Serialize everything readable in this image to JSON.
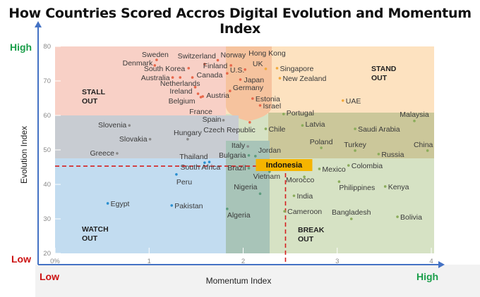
{
  "chart_data": {
    "type": "scatter",
    "title": "How Countries Scored Accros Digital Evolution and Momentum Index",
    "xlabel": "Momentum Index",
    "ylabel": "Evolution Index",
    "xlim": [
      0,
      4
    ],
    "ylim": [
      20,
      80
    ],
    "x_ticks": [
      "0%",
      "1",
      "2",
      "3",
      "4"
    ],
    "y_ticks": [
      "20",
      "30",
      "40",
      "50",
      "60",
      "70",
      "80"
    ],
    "x_low_label": "Low",
    "x_high_label": "High",
    "y_low_label": "Low",
    "y_high_label": "High",
    "grid": false,
    "colors": {
      "low": "#cc1111",
      "high": "#1a9e4a",
      "axis": "#4472c4",
      "highlight": "#f5b400",
      "reference_line": "#d42020"
    },
    "quadrants": {
      "stall_out": [
        "STALL",
        "OUT"
      ],
      "stand_out": [
        "STAND",
        "OUT"
      ],
      "watch_out": [
        "WATCH",
        "OUT"
      ],
      "break_out": [
        "BREAK",
        "OUT"
      ]
    },
    "highlight": {
      "name": "Indonesia",
      "x": 2.45,
      "y": 45.3
    },
    "points": [
      {
        "name": "Sweden",
        "x": 1.08,
        "y": 76.1,
        "group": "stall"
      },
      {
        "name": "Denmark",
        "x": 1.06,
        "y": 74.5,
        "group": "stall"
      },
      {
        "name": "Switzerland",
        "x": 1.59,
        "y": 74.9,
        "group": "stall"
      },
      {
        "name": "Norway",
        "x": 1.73,
        "y": 76.0,
        "group": "stall"
      },
      {
        "name": "South Korea",
        "x": 1.42,
        "y": 73.7,
        "group": "stall"
      },
      {
        "name": "Finland",
        "x": 1.87,
        "y": 74.5,
        "group": "stall"
      },
      {
        "name": "Australia",
        "x": 1.25,
        "y": 71.0,
        "group": "stall"
      },
      {
        "name": "Netherlands",
        "x": 1.33,
        "y": 71.0,
        "group": "stall"
      },
      {
        "name": "U.S.",
        "x": 1.83,
        "y": 72.2,
        "group": "stall"
      },
      {
        "name": "Canada",
        "x": 1.46,
        "y": 71.0,
        "group": "stall"
      },
      {
        "name": "Ireland",
        "x": 1.49,
        "y": 68.2,
        "group": "stall"
      },
      {
        "name": "Belgium",
        "x": 1.52,
        "y": 66.3,
        "group": "stall"
      },
      {
        "name": "Austria",
        "x": 1.57,
        "y": 65.5,
        "group": "stall"
      },
      {
        "name": "France",
        "x": 1.55,
        "y": 65.3,
        "group": "stall"
      },
      {
        "name": "Hong Kong",
        "x": 2.02,
        "y": 73.3,
        "group": "stall"
      },
      {
        "name": "Japan",
        "x": 1.97,
        "y": 70.4,
        "group": "stall"
      },
      {
        "name": "Germany",
        "x": 1.86,
        "y": 67.1,
        "group": "stall"
      },
      {
        "name": "UK",
        "x": 2.24,
        "y": 73.5,
        "group": "stand"
      },
      {
        "name": "Estonia",
        "x": 2.1,
        "y": 64.9,
        "group": "stall"
      },
      {
        "name": "Israel",
        "x": 2.18,
        "y": 62.9,
        "group": "stall"
      },
      {
        "name": "Singapore",
        "x": 2.36,
        "y": 73.7,
        "group": "stand"
      },
      {
        "name": "New Zealand",
        "x": 2.39,
        "y": 70.8,
        "group": "stand"
      },
      {
        "name": "UAE",
        "x": 3.06,
        "y": 64.3,
        "group": "stand"
      },
      {
        "name": "Spain",
        "x": 1.79,
        "y": 58.6,
        "group": "mid"
      },
      {
        "name": "Czech Republic",
        "x": 2.07,
        "y": 58.0,
        "group": "stall"
      },
      {
        "name": "Slovenia",
        "x": 0.79,
        "y": 57.1,
        "group": "mid"
      },
      {
        "name": "Slovakia",
        "x": 1.01,
        "y": 53.1,
        "group": "mid"
      },
      {
        "name": "Hungary",
        "x": 1.41,
        "y": 53.1,
        "group": "mid"
      },
      {
        "name": "Italy",
        "x": 2.05,
        "y": 51.0,
        "group": "mid"
      },
      {
        "name": "Greece",
        "x": 0.66,
        "y": 49.0,
        "group": "mid"
      },
      {
        "name": "Portugal",
        "x": 2.43,
        "y": 60.4,
        "group": "break"
      },
      {
        "name": "Chile",
        "x": 2.24,
        "y": 56.1,
        "group": "break"
      },
      {
        "name": "Latvia",
        "x": 2.63,
        "y": 57.1,
        "group": "break"
      },
      {
        "name": "Saudi Arabia",
        "x": 3.19,
        "y": 56.1,
        "group": "break"
      },
      {
        "name": "Malaysia",
        "x": 3.82,
        "y": 58.4,
        "group": "break"
      },
      {
        "name": "Poland",
        "x": 2.83,
        "y": 50.6,
        "group": "break"
      },
      {
        "name": "Turkey",
        "x": 3.19,
        "y": 49.8,
        "group": "break"
      },
      {
        "name": "China",
        "x": 3.96,
        "y": 49.8,
        "group": "break"
      },
      {
        "name": "Russia",
        "x": 3.44,
        "y": 48.8,
        "group": "break"
      },
      {
        "name": "Thailand",
        "x": 1.64,
        "y": 46.5,
        "group": "watch"
      },
      {
        "name": "South Africa",
        "x": 1.59,
        "y": 46.3,
        "group": "watch"
      },
      {
        "name": "Peru",
        "x": 1.29,
        "y": 42.9,
        "group": "watch"
      },
      {
        "name": "Egypt",
        "x": 0.56,
        "y": 34.5,
        "group": "watch"
      },
      {
        "name": "Pakistan",
        "x": 1.24,
        "y": 33.9,
        "group": "watch"
      },
      {
        "name": "Bulgaria",
        "x": 2.06,
        "y": 48.4,
        "group": "teal"
      },
      {
        "name": "Jordan",
        "x": 2.13,
        "y": 48.2,
        "group": "teal"
      },
      {
        "name": "Brazil",
        "x": 2.06,
        "y": 44.7,
        "group": "teal"
      },
      {
        "name": "Vietnam",
        "x": 2.28,
        "y": 43.7,
        "group": "teal"
      },
      {
        "name": "Nigeria",
        "x": 2.18,
        "y": 37.3,
        "group": "teal"
      },
      {
        "name": "Algeria",
        "x": 1.83,
        "y": 32.9,
        "group": "teal"
      },
      {
        "name": "Mexico",
        "x": 2.81,
        "y": 44.5,
        "group": "break"
      },
      {
        "name": "Colombia",
        "x": 3.12,
        "y": 45.5,
        "group": "break"
      },
      {
        "name": "Morocco",
        "x": 2.65,
        "y": 42.2,
        "group": "break"
      },
      {
        "name": "Philippines",
        "x": 3.02,
        "y": 40.8,
        "group": "break"
      },
      {
        "name": "Kenya",
        "x": 3.51,
        "y": 39.4,
        "group": "break"
      },
      {
        "name": "India",
        "x": 2.54,
        "y": 36.7,
        "group": "break"
      },
      {
        "name": "Cameroon",
        "x": 2.44,
        "y": 32.2,
        "group": "break"
      },
      {
        "name": "Bangladesh",
        "x": 3.15,
        "y": 30.0,
        "group": "break"
      },
      {
        "name": "Bolivia",
        "x": 3.64,
        "y": 30.6,
        "group": "break"
      }
    ]
  }
}
